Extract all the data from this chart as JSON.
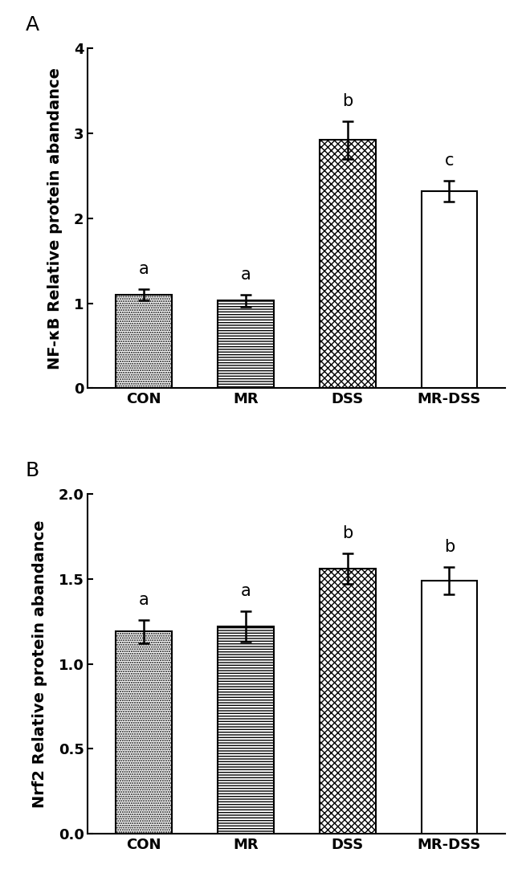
{
  "panel_A": {
    "categories": [
      "CON",
      "MR",
      "DSS",
      "MR-DSS"
    ],
    "values": [
      1.1,
      1.03,
      2.92,
      2.32
    ],
    "errors": [
      0.07,
      0.07,
      0.22,
      0.12
    ],
    "letters": [
      "a",
      "a",
      "b",
      "c"
    ],
    "ylabel": "NF-κB Relative protein abandance",
    "panel_label": "A",
    "ylim": [
      0,
      4.0
    ],
    "yticks": [
      0,
      1,
      2,
      3,
      4
    ],
    "ytick_labels": [
      "0",
      "1",
      "2",
      "3",
      "4"
    ],
    "hatch_patterns": [
      "......",
      "-----",
      "xxxx",
      ""
    ],
    "bar_facecolors": [
      "white",
      "white",
      "white",
      "white"
    ],
    "bar_edgecolors": [
      "black",
      "black",
      "black",
      "black"
    ]
  },
  "panel_B": {
    "categories": [
      "CON",
      "MR",
      "DSS",
      "MR-DSS"
    ],
    "values": [
      1.19,
      1.22,
      1.56,
      1.49
    ],
    "errors": [
      0.07,
      0.09,
      0.09,
      0.08
    ],
    "letters": [
      "a",
      "a",
      "b",
      "b"
    ],
    "ylabel": "Nrf2 Relative protein abandance",
    "panel_label": "B",
    "ylim": [
      0,
      2.0
    ],
    "yticks": [
      0.0,
      0.5,
      1.0,
      1.5,
      2.0
    ],
    "ytick_labels": [
      "0.0",
      "0.5",
      "1.0",
      "1.5",
      "2.0"
    ],
    "hatch_patterns": [
      "......",
      "-----",
      "xxxx",
      ""
    ],
    "bar_facecolors": [
      "white",
      "white",
      "white",
      "white"
    ],
    "bar_edgecolors": [
      "black",
      "black",
      "black",
      "black"
    ]
  },
  "figure_bg": "white",
  "bar_width": 0.55,
  "letter_fontsize": 15,
  "label_fontsize": 14,
  "tick_fontsize": 13,
  "panel_label_fontsize": 18,
  "cap_size": 5,
  "error_linewidth": 1.8
}
